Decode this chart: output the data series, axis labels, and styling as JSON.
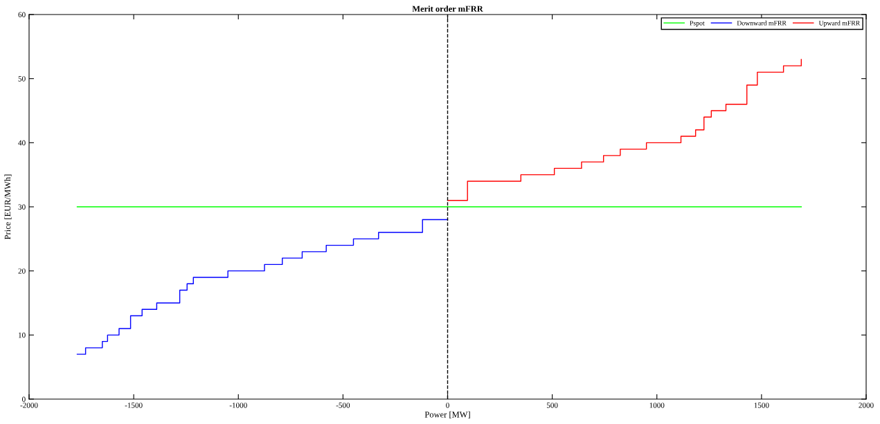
{
  "chart_data": {
    "type": "step",
    "title": "Merit order mFRR",
    "xlabel": "Power [MW]",
    "ylabel": "Price [EUR/MWh]",
    "xlim": [
      -2000,
      2000
    ],
    "ylim": [
      0,
      60
    ],
    "xticks": [
      -2000,
      -1500,
      -1000,
      -500,
      0,
      500,
      1000,
      1500,
      2000
    ],
    "yticks": [
      0,
      10,
      20,
      30,
      40,
      50,
      60
    ],
    "grid": false,
    "legend": "top right",
    "line_style": "solid",
    "marker": "none",
    "ref_lines": [
      {
        "axis": "x",
        "value": 0,
        "label": null,
        "color": "#000000",
        "line_style": "dashed"
      }
    ],
    "series": [
      {
        "name": "Pspot",
        "type": "line",
        "color": "#00ff00",
        "x": [
          -1770,
          1690
        ],
        "values": [
          30,
          30
        ]
      },
      {
        "name": "Downward mFRR",
        "color": "#0000ff",
        "x": [
          -1770,
          -1730,
          -1650,
          -1625,
          -1570,
          -1515,
          -1460,
          -1390,
          -1280,
          -1245,
          -1215,
          -1050,
          -875,
          -790,
          -695,
          -580,
          -450,
          -330,
          -120,
          0
        ],
        "values": [
          7,
          8,
          9,
          10,
          11,
          13,
          14,
          15,
          17,
          18,
          19,
          20,
          21,
          22,
          23,
          24,
          25,
          26,
          28,
          28
        ]
      },
      {
        "name": "Upward mFRR",
        "color": "#ff0000",
        "x": [
          0,
          95,
          350,
          510,
          640,
          745,
          825,
          950,
          1115,
          1185,
          1225,
          1260,
          1330,
          1430,
          1480,
          1605,
          1690
        ],
        "values": [
          31,
          34,
          35,
          36,
          37,
          38,
          39,
          40,
          41,
          42,
          44,
          45,
          46,
          49,
          51,
          52,
          53
        ]
      }
    ]
  }
}
